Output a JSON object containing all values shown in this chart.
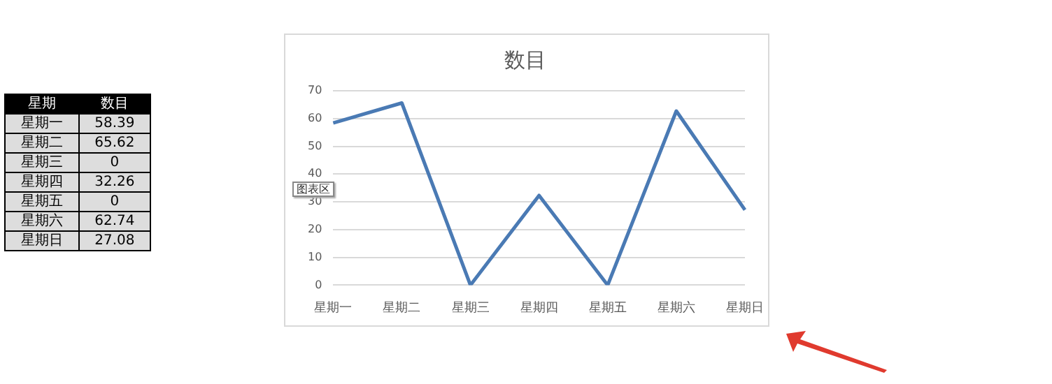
{
  "chart_data": [
    {
      "type": "other",
      "annotations": [
        "星期",
        "数目"
      ],
      "categories": [
        "星期一",
        "星期二",
        "星期三",
        "星期四",
        "星期五",
        "星期六",
        "星期日"
      ],
      "values": [
        58.39,
        65.62,
        0,
        32.26,
        0,
        62.74,
        27.08
      ],
      "data_labels": true
    },
    {
      "type": "line",
      "title": "数目",
      "categories": [
        "星期一",
        "星期二",
        "星期三",
        "星期四",
        "星期五",
        "星期六",
        "星期日"
      ],
      "series": [
        {
          "color": "#4a7ab4",
          "values": [
            58.4,
            65.6,
            0,
            32.3,
            0,
            62.7,
            27.1
          ]
        }
      ],
      "ylim": [
        0,
        70
      ],
      "yticks": [
        0,
        10,
        20,
        30,
        40,
        50,
        60,
        70
      ],
      "grid": "y",
      "legend": false,
      "marker": "none",
      "line_style": "solid",
      "annotations": [
        "图表区"
      ]
    }
  ]
}
